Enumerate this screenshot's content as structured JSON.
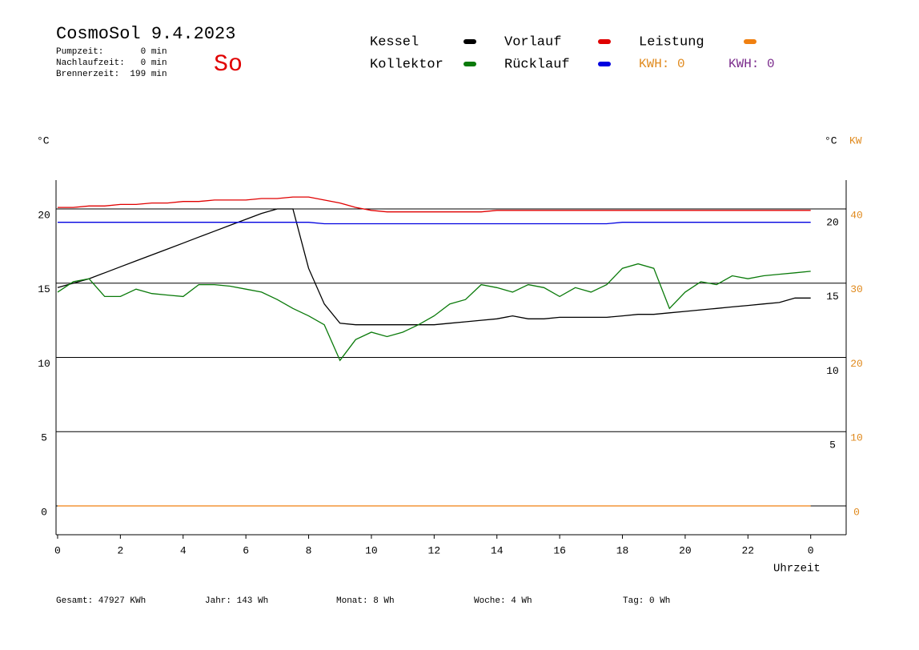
{
  "chart_data": {
    "type": "line",
    "title": "CosmoSol 9.4.2023",
    "info": [
      "Pumpzeit:       0 min",
      "Nachlaufzeit:   0 min",
      "Brennerzeit:  199 min"
    ],
    "day": "So",
    "y_label": "°C",
    "y_label_right": "°C",
    "y2_label": "KW",
    "x_label": "Uhrzeit",
    "annotations": [
      {
        "text": "KWH: 0",
        "color": "#e08a1e"
      },
      {
        "text": "KWH: 0",
        "color": "#7b2c8c"
      }
    ],
    "footer": [
      "Gesamt:  47927 KWh",
      "Jahr:   143 Wh",
      "Monat:     8 Wh",
      "Woche:    4 Wh",
      "Tag:     0 Wh"
    ],
    "x": [
      0,
      0.5,
      1,
      1.5,
      2,
      2.5,
      3,
      3.5,
      4,
      4.5,
      5,
      5.5,
      6,
      6.5,
      7,
      7.5,
      8,
      8.5,
      9,
      9.5,
      10,
      10.5,
      11,
      11.5,
      12,
      12.5,
      13,
      13.5,
      14,
      14.5,
      15,
      15.5,
      16,
      16.5,
      17,
      17.5,
      18,
      18.5,
      19,
      19.5,
      20,
      20.5,
      21,
      21.5,
      22,
      22.5,
      23,
      23.5,
      24
    ],
    "series": [
      {
        "name": "Kessel",
        "color": "#000000",
        "values": [
          14.7,
          15.0,
          15.3,
          15.7,
          16.1,
          16.5,
          16.9,
          17.3,
          17.7,
          18.1,
          18.5,
          18.9,
          19.3,
          19.7,
          20.0,
          20.0,
          16.0,
          13.6,
          12.3,
          12.2,
          12.2,
          12.2,
          12.2,
          12.2,
          12.2,
          12.3,
          12.4,
          12.5,
          12.6,
          12.8,
          12.6,
          12.6,
          12.7,
          12.7,
          12.7,
          12.7,
          12.8,
          12.9,
          12.9,
          13.0,
          13.1,
          13.2,
          13.3,
          13.4,
          13.5,
          13.6,
          13.7,
          14.0,
          14.0
        ]
      },
      {
        "name": "Kollektor",
        "color": "#0a7a0a",
        "values": [
          14.4,
          15.1,
          15.3,
          14.1,
          14.1,
          14.6,
          14.3,
          14.2,
          14.1,
          14.9,
          14.9,
          14.8,
          14.6,
          14.4,
          13.9,
          13.3,
          12.8,
          12.2,
          9.8,
          11.2,
          11.7,
          11.4,
          11.7,
          12.2,
          12.8,
          13.6,
          13.9,
          14.9,
          14.7,
          14.4,
          14.9,
          14.7,
          14.1,
          14.7,
          14.4,
          14.9,
          16.0,
          16.3,
          16.0,
          13.3,
          14.4,
          15.1,
          14.9,
          15.5,
          15.3,
          15.5,
          15.6,
          15.7,
          15.8
        ]
      },
      {
        "name": "Vorlauf",
        "color": "#e00000",
        "values": [
          20.1,
          20.1,
          20.2,
          20.2,
          20.3,
          20.3,
          20.4,
          20.4,
          20.5,
          20.5,
          20.6,
          20.6,
          20.6,
          20.7,
          20.7,
          20.8,
          20.8,
          20.6,
          20.4,
          20.1,
          19.9,
          19.8,
          19.8,
          19.8,
          19.8,
          19.8,
          19.8,
          19.8,
          19.9,
          19.9,
          19.9,
          19.9,
          19.9,
          19.9,
          19.9,
          19.9,
          19.9,
          19.9,
          19.9,
          19.9,
          19.9,
          19.9,
          19.9,
          19.9,
          19.9,
          19.9,
          19.9,
          19.9,
          19.9
        ]
      },
      {
        "name": "Rücklauf",
        "color": "#0000e0",
        "values": [
          19.1,
          19.1,
          19.1,
          19.1,
          19.1,
          19.1,
          19.1,
          19.1,
          19.1,
          19.1,
          19.1,
          19.1,
          19.1,
          19.1,
          19.1,
          19.1,
          19.1,
          19.0,
          19.0,
          19.0,
          19.0,
          19.0,
          19.0,
          19.0,
          19.0,
          19.0,
          19.0,
          19.0,
          19.0,
          19.0,
          19.0,
          19.0,
          19.0,
          19.0,
          19.0,
          19.0,
          19.1,
          19.1,
          19.1,
          19.1,
          19.1,
          19.1,
          19.1,
          19.1,
          19.1,
          19.1,
          19.1,
          19.1,
          19.1
        ]
      },
      {
        "name": "Leistung",
        "color": "#f08010",
        "axis": "y2",
        "values": [
          0,
          0,
          0,
          0,
          0,
          0,
          0,
          0,
          0,
          0,
          0,
          0,
          0,
          0,
          0,
          0,
          0,
          0,
          0,
          0,
          0,
          0,
          0,
          0,
          0,
          0,
          0,
          0,
          0,
          0,
          0,
          0,
          0,
          0,
          0,
          0,
          0,
          0,
          0,
          0,
          0,
          0,
          0,
          0,
          0,
          0,
          0,
          0,
          0
        ]
      }
    ],
    "xlim": [
      -0.05,
      25.13
    ],
    "xticks": [
      0,
      2,
      4,
      6,
      8,
      10,
      12,
      14,
      16,
      18,
      20,
      22,
      {
        "value": 24,
        "label": "0"
      }
    ],
    "ylim": [
      -1.94,
      21.94
    ],
    "yticks": [
      0,
      5,
      10,
      15,
      20
    ],
    "yticks_right": [
      5,
      10,
      15,
      20
    ],
    "y2lim": [
      -3.88,
      43.88
    ],
    "y2ticks": [
      0,
      10,
      20,
      30,
      40
    ],
    "y2color": "#e08a1e",
    "grid": true
  }
}
